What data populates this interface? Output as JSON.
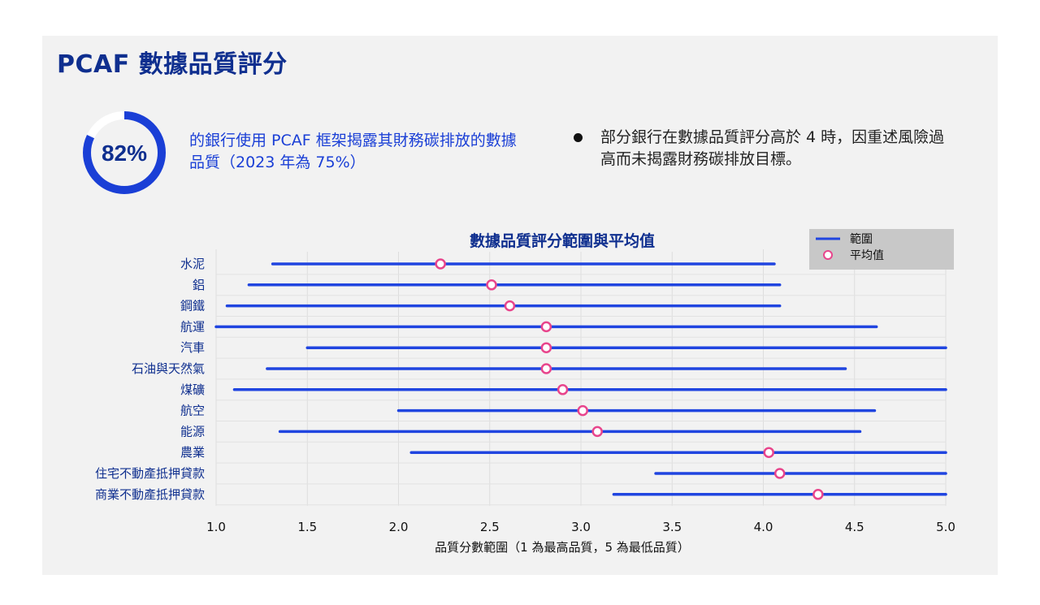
{
  "page": {
    "title": "PCAF 數據品質評分"
  },
  "kpi": {
    "value_label": "82%",
    "percent": 82,
    "description": "的銀行使用 PCAF 框架揭露其財務碳排放的數據品質（2023 年為 75%）"
  },
  "note": {
    "text": "部分銀行在數據品質評分高於 4 時，因重述風險過高而未揭露財務碳排放目標。"
  },
  "colors": {
    "title": "#0f2f8f",
    "accent": "#1a3fd6",
    "range_line": "#2045e0",
    "mean_marker": "#e8458c"
  },
  "chart_data": {
    "type": "range",
    "title": "數據品質評分範圍與平均值",
    "xlabel": "品質分數範圍（1 為最高品質，5 為最低品質）",
    "ylabel": "",
    "xlim": [
      1.0,
      5.0
    ],
    "xticks": [
      "1.0",
      "1.5",
      "2.0",
      "2.5",
      "3.0",
      "3.5",
      "4.0",
      "4.5",
      "5.0"
    ],
    "legend": {
      "position": "top-right",
      "range_label": "範圍",
      "mean_label": "平均值"
    },
    "categories": [
      "水泥",
      "鋁",
      "鋼鐵",
      "航運",
      "汽車",
      "石油與天然氣",
      "煤礦",
      "航空",
      "能源",
      "農業",
      "住宅不動產抵押貸款",
      "商業不動產抵押貸款"
    ],
    "series": [
      {
        "name": "範圍",
        "min": [
          1.31,
          1.18,
          1.06,
          1.0,
          1.5,
          1.28,
          1.1,
          2.0,
          1.35,
          2.07,
          3.41,
          3.18
        ],
        "max": [
          4.06,
          4.09,
          4.09,
          4.62,
          5.0,
          4.45,
          5.0,
          4.61,
          4.53,
          5.0,
          5.0,
          5.0
        ]
      },
      {
        "name": "平均值",
        "values": [
          2.23,
          2.51,
          2.61,
          2.81,
          2.81,
          2.81,
          2.9,
          3.01,
          3.09,
          4.03,
          4.09,
          4.3
        ]
      }
    ]
  }
}
